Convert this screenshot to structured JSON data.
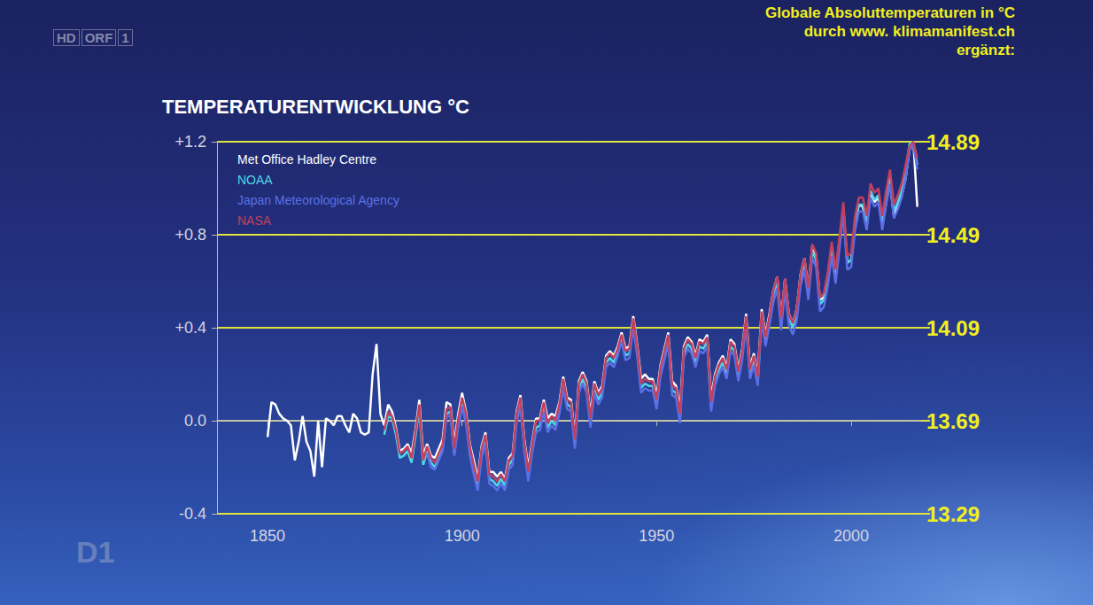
{
  "chart_data": {
    "type": "line",
    "title": "TEMPERATURENTWICKLUNG °C",
    "annotations": [
      "Globale Absoluttemperaturen in °C",
      "durch www. klimamanifest.ch",
      "ergänzt:"
    ],
    "logos": [
      "HD ORF 1",
      "D1"
    ],
    "xlim": [
      1837,
      2018
    ],
    "xticks": [
      1850,
      1900,
      1950,
      2000
    ],
    "ylim": [
      -0.4,
      1.2
    ],
    "yticks": [
      {
        "value": -0.4,
        "label": "-0.4"
      },
      {
        "value": 0,
        "label": "0.0"
      },
      {
        "value": 0.4,
        "label": "+0.4"
      },
      {
        "value": 0.8,
        "label": "+0.8"
      },
      {
        "value": 1.2,
        "label": "+1.2"
      }
    ],
    "y2lim": [
      13.29,
      14.89
    ],
    "y2ticks": [
      13.29,
      13.69,
      14.09,
      14.49,
      14.89
    ],
    "grid": true,
    "legend": "upper left",
    "x": [
      1850,
      1851,
      1852,
      1853,
      1854,
      1855,
      1856,
      1857,
      1858,
      1859,
      1860,
      1861,
      1862,
      1863,
      1864,
      1865,
      1866,
      1867,
      1868,
      1869,
      1870,
      1871,
      1872,
      1873,
      1874,
      1875,
      1876,
      1877,
      1878,
      1879,
      1880,
      1881,
      1882,
      1883,
      1884,
      1885,
      1886,
      1887,
      1888,
      1889,
      1890,
      1891,
      1892,
      1893,
      1894,
      1895,
      1896,
      1897,
      1898,
      1899,
      1900,
      1901,
      1902,
      1903,
      1904,
      1905,
      1906,
      1907,
      1908,
      1909,
      1910,
      1911,
      1912,
      1913,
      1914,
      1915,
      1916,
      1917,
      1918,
      1919,
      1920,
      1921,
      1922,
      1923,
      1924,
      1925,
      1926,
      1927,
      1928,
      1929,
      1930,
      1931,
      1932,
      1933,
      1934,
      1935,
      1936,
      1937,
      1938,
      1939,
      1940,
      1941,
      1942,
      1943,
      1944,
      1945,
      1946,
      1947,
      1948,
      1949,
      1950,
      1951,
      1952,
      1953,
      1954,
      1955,
      1956,
      1957,
      1958,
      1959,
      1960,
      1961,
      1962,
      1963,
      1964,
      1965,
      1966,
      1967,
      1968,
      1969,
      1970,
      1971,
      1972,
      1973,
      1974,
      1975,
      1976,
      1977,
      1978,
      1979,
      1980,
      1981,
      1982,
      1983,
      1984,
      1985,
      1986,
      1987,
      1988,
      1989,
      1990,
      1991,
      1992,
      1993,
      1994,
      1995,
      1996,
      1997,
      1998,
      1999,
      2000,
      2001,
      2002,
      2003,
      2004,
      2005,
      2006,
      2007,
      2008,
      2009,
      2010,
      2011,
      2012,
      2013,
      2014,
      2015,
      2016,
      2017
    ],
    "series": [
      {
        "name": "Met Office Hadley Centre",
        "color": "#ffffff",
        "values": [
          -0.07,
          0.08,
          0.07,
          0.03,
          0.01,
          0.0,
          -0.02,
          -0.17,
          -0.09,
          0.02,
          -0.09,
          -0.13,
          -0.24,
          0.0,
          -0.2,
          0.01,
          0.0,
          -0.02,
          0.02,
          0.02,
          -0.02,
          -0.05,
          0.03,
          0.01,
          -0.05,
          -0.06,
          -0.05,
          0.2,
          0.33,
          0.03,
          -0.02,
          0.07,
          0.04,
          -0.03,
          -0.13,
          -0.12,
          -0.1,
          -0.14,
          -0.04,
          0.09,
          -0.15,
          -0.1,
          -0.15,
          -0.16,
          -0.12,
          -0.08,
          0.08,
          0.07,
          -0.1,
          0.03,
          0.12,
          0.04,
          -0.1,
          -0.17,
          -0.25,
          -0.11,
          -0.05,
          -0.22,
          -0.22,
          -0.24,
          -0.22,
          -0.25,
          -0.16,
          -0.14,
          0.04,
          0.11,
          -0.08,
          -0.2,
          -0.09,
          0.01,
          0.01,
          0.09,
          0.01,
          0.03,
          0.02,
          0.08,
          0.19,
          0.1,
          0.09,
          -0.07,
          0.17,
          0.21,
          0.17,
          0.03,
          0.17,
          0.12,
          0.15,
          0.28,
          0.3,
          0.28,
          0.32,
          0.38,
          0.31,
          0.32,
          0.45,
          0.33,
          0.18,
          0.2,
          0.18,
          0.18,
          0.11,
          0.24,
          0.31,
          0.38,
          0.17,
          0.15,
          0.05,
          0.32,
          0.36,
          0.34,
          0.28,
          0.35,
          0.34,
          0.37,
          0.1,
          0.2,
          0.25,
          0.28,
          0.23,
          0.35,
          0.33,
          0.22,
          0.31,
          0.46,
          0.23,
          0.29,
          0.2,
          0.48,
          0.37,
          0.46,
          0.56,
          0.62,
          0.44,
          0.61,
          0.46,
          0.42,
          0.48,
          0.63,
          0.7,
          0.57,
          0.75,
          0.71,
          0.52,
          0.53,
          0.62,
          0.75,
          0.63,
          0.77,
          0.91,
          0.68,
          0.69,
          0.84,
          0.93,
          0.92,
          0.84,
          0.98,
          0.94,
          0.96,
          0.84,
          0.94,
          1.02,
          0.88,
          0.92,
          0.97,
          1.04,
          1.17,
          1.2,
          0.92
        ]
      },
      {
        "name": "NOAA",
        "color": "#4fd8e4",
        "values": [
          null,
          null,
          null,
          null,
          null,
          null,
          null,
          null,
          null,
          null,
          null,
          null,
          null,
          null,
          null,
          null,
          null,
          null,
          null,
          null,
          null,
          null,
          null,
          null,
          null,
          null,
          null,
          null,
          null,
          null,
          -0.06,
          0.02,
          0.01,
          -0.06,
          -0.16,
          -0.15,
          -0.13,
          -0.18,
          -0.07,
          0.05,
          -0.19,
          -0.13,
          -0.18,
          -0.2,
          -0.16,
          -0.12,
          0.03,
          0.04,
          -0.14,
          -0.01,
          0.08,
          0.01,
          -0.13,
          -0.21,
          -0.28,
          -0.14,
          -0.08,
          -0.25,
          -0.26,
          -0.28,
          -0.25,
          -0.28,
          -0.19,
          -0.17,
          0.01,
          0.08,
          -0.11,
          -0.24,
          -0.12,
          -0.03,
          -0.02,
          0.06,
          -0.03,
          0.0,
          -0.02,
          0.05,
          0.16,
          0.07,
          0.06,
          -0.1,
          0.14,
          0.18,
          0.14,
          -0.01,
          0.14,
          0.09,
          0.12,
          0.25,
          0.27,
          0.25,
          0.3,
          0.36,
          0.28,
          0.29,
          0.42,
          0.3,
          0.14,
          0.16,
          0.15,
          0.15,
          0.07,
          0.21,
          0.28,
          0.35,
          0.13,
          0.12,
          0.01,
          0.29,
          0.33,
          0.31,
          0.25,
          0.32,
          0.31,
          0.34,
          0.06,
          0.17,
          0.22,
          0.25,
          0.2,
          0.32,
          0.3,
          0.19,
          0.28,
          0.43,
          0.2,
          0.26,
          0.17,
          0.45,
          0.34,
          0.43,
          0.54,
          0.6,
          0.42,
          0.59,
          0.44,
          0.4,
          0.46,
          0.61,
          0.68,
          0.55,
          0.73,
          0.69,
          0.5,
          0.52,
          0.61,
          0.74,
          0.62,
          0.77,
          0.92,
          0.68,
          0.69,
          0.85,
          0.93,
          0.93,
          0.85,
          0.99,
          0.95,
          0.97,
          0.85,
          0.96,
          1.05,
          0.9,
          0.94,
          0.99,
          1.07,
          1.19,
          1.2,
          1.1
        ]
      },
      {
        "name": "Japan Meteorological Agency",
        "color": "#5b70e6",
        "values": [
          null,
          null,
          null,
          null,
          null,
          null,
          null,
          null,
          null,
          null,
          null,
          null,
          null,
          null,
          null,
          null,
          null,
          null,
          null,
          null,
          null,
          null,
          null,
          null,
          null,
          null,
          null,
          null,
          null,
          null,
          null,
          null,
          null,
          null,
          null,
          null,
          null,
          null,
          null,
          null,
          null,
          -0.14,
          -0.2,
          -0.21,
          -0.17,
          -0.13,
          0.02,
          0.02,
          -0.15,
          -0.03,
          0.06,
          -0.01,
          -0.15,
          -0.23,
          -0.3,
          -0.16,
          -0.1,
          -0.27,
          -0.28,
          -0.3,
          -0.27,
          -0.3,
          -0.21,
          -0.19,
          -0.01,
          0.06,
          -0.13,
          -0.26,
          -0.14,
          -0.05,
          -0.04,
          0.04,
          -0.05,
          -0.02,
          -0.04,
          0.03,
          0.14,
          0.05,
          0.04,
          -0.12,
          0.12,
          0.16,
          0.12,
          -0.03,
          0.12,
          0.07,
          0.1,
          0.23,
          0.25,
          0.23,
          0.28,
          0.34,
          0.26,
          0.27,
          0.4,
          0.28,
          0.12,
          0.14,
          0.13,
          0.13,
          0.05,
          0.19,
          0.26,
          0.33,
          0.11,
          0.1,
          -0.01,
          0.27,
          0.31,
          0.29,
          0.23,
          0.3,
          0.29,
          0.32,
          0.04,
          0.15,
          0.2,
          0.23,
          0.18,
          0.3,
          0.28,
          0.17,
          0.26,
          0.41,
          0.18,
          0.24,
          0.15,
          0.43,
          0.32,
          0.41,
          0.51,
          0.57,
          0.39,
          0.56,
          0.41,
          0.37,
          0.43,
          0.58,
          0.65,
          0.52,
          0.7,
          0.66,
          0.47,
          0.49,
          0.58,
          0.71,
          0.59,
          0.74,
          0.89,
          0.65,
          0.66,
          0.82,
          0.9,
          0.9,
          0.82,
          0.96,
          0.92,
          0.94,
          0.82,
          0.93,
          1.02,
          0.87,
          0.91,
          0.96,
          1.04,
          1.16,
          1.19,
          1.08
        ]
      },
      {
        "name": "NASA",
        "color": "#c2405e",
        "values": [
          null,
          null,
          null,
          null,
          null,
          null,
          null,
          null,
          null,
          null,
          null,
          null,
          null,
          null,
          null,
          null,
          null,
          null,
          null,
          null,
          null,
          null,
          null,
          null,
          null,
          null,
          null,
          null,
          null,
          null,
          -0.04,
          0.04,
          0.02,
          -0.04,
          -0.14,
          -0.13,
          -0.11,
          -0.16,
          -0.05,
          0.07,
          -0.17,
          -0.11,
          -0.16,
          -0.18,
          -0.14,
          -0.1,
          0.05,
          0.06,
          -0.12,
          0.01,
          0.1,
          0.03,
          -0.11,
          -0.19,
          -0.26,
          -0.12,
          -0.06,
          -0.23,
          -0.24,
          -0.26,
          -0.23,
          -0.26,
          -0.17,
          -0.15,
          0.03,
          0.1,
          -0.09,
          -0.22,
          -0.1,
          0.0,
          0.0,
          0.08,
          -0.01,
          0.02,
          0.0,
          0.07,
          0.18,
          0.09,
          0.08,
          -0.08,
          0.16,
          0.2,
          0.16,
          0.01,
          0.16,
          0.11,
          0.14,
          0.27,
          0.29,
          0.27,
          0.31,
          0.37,
          0.3,
          0.31,
          0.44,
          0.32,
          0.16,
          0.18,
          0.17,
          0.17,
          0.09,
          0.23,
          0.3,
          0.37,
          0.15,
          0.14,
          0.03,
          0.31,
          0.35,
          0.33,
          0.27,
          0.34,
          0.33,
          0.36,
          0.08,
          0.19,
          0.24,
          0.27,
          0.22,
          0.34,
          0.32,
          0.21,
          0.3,
          0.45,
          0.22,
          0.28,
          0.19,
          0.47,
          0.36,
          0.45,
          0.56,
          0.62,
          0.44,
          0.61,
          0.46,
          0.42,
          0.48,
          0.63,
          0.7,
          0.57,
          0.76,
          0.72,
          0.53,
          0.55,
          0.64,
          0.77,
          0.65,
          0.79,
          0.94,
          0.71,
          0.72,
          0.88,
          0.96,
          0.96,
          0.88,
          1.02,
          0.98,
          1.0,
          0.88,
          0.99,
          1.08,
          0.93,
          0.97,
          1.02,
          1.1,
          1.18,
          1.2,
          1.13
        ]
      }
    ]
  }
}
